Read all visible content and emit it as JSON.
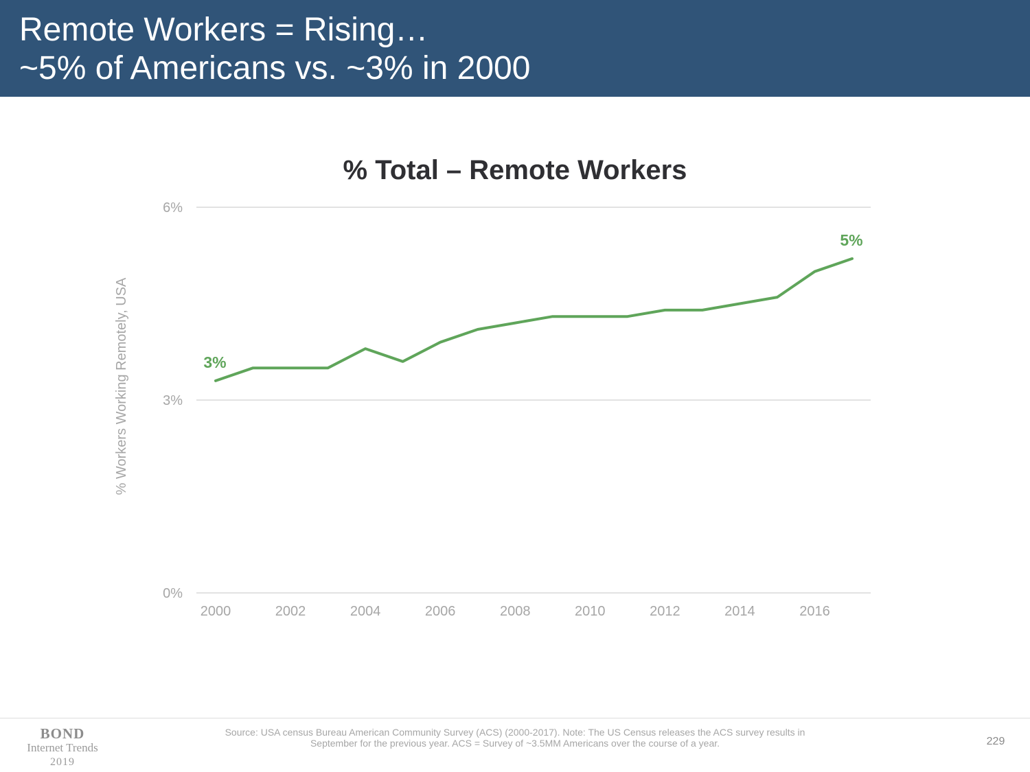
{
  "header": {
    "title_line1": "Remote Workers = Rising…",
    "title_line2": "~5% of Americans vs. ~3% in 2000",
    "background": "#305478"
  },
  "chart_data": {
    "type": "line",
    "title": "% Total – Remote Workers",
    "xlabel": "",
    "ylabel": "% Workers Working Remotely, USA",
    "x": [
      2000,
      2001,
      2002,
      2003,
      2004,
      2005,
      2006,
      2007,
      2008,
      2009,
      2010,
      2011,
      2012,
      2013,
      2014,
      2015,
      2016,
      2017
    ],
    "series": [
      {
        "color": "#5fa55a",
        "values": [
          3.3,
          3.5,
          3.5,
          3.5,
          3.8,
          3.6,
          3.9,
          4.1,
          4.2,
          4.3,
          4.3,
          4.3,
          4.4,
          4.4,
          4.5,
          4.6,
          5.0,
          5.2
        ]
      }
    ],
    "xlim": [
      2000,
      2017
    ],
    "ylim": [
      0,
      6
    ],
    "x_ticks": [
      2000,
      2002,
      2004,
      2006,
      2008,
      2010,
      2012,
      2014,
      2016
    ],
    "y_ticks": [
      {
        "value": 0,
        "label": "0%"
      },
      {
        "value": 3,
        "label": "3%"
      },
      {
        "value": 6,
        "label": "6%"
      }
    ],
    "grid": "horizontal",
    "data_labels": [
      {
        "x": 2000,
        "y": 3.3,
        "text": "3%"
      },
      {
        "x": 2017,
        "y": 5.2,
        "text": "5%"
      }
    ]
  },
  "footer": {
    "brand": "BOND",
    "brand_sub": "Internet Trends",
    "brand_year": "2019",
    "source_line1": "Source: USA census Bureau American Community Survey (ACS) (2000-2017).  Note: The US Census releases the ACS survey results in",
    "source_line2": "September for the previous year.  ACS = Survey of ~3.5MM Americans over the course of a year.",
    "page_number": "229"
  }
}
